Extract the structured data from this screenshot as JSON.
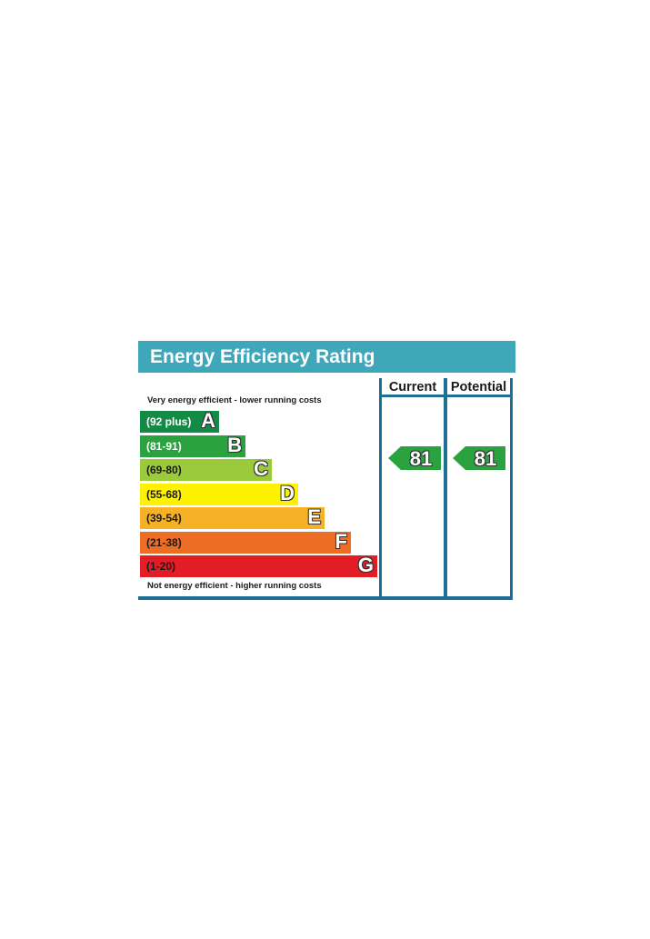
{
  "chart_data": {
    "type": "bar",
    "title": "Energy Efficiency Rating",
    "columns": [
      "Current",
      "Potential"
    ],
    "top_note": "Very energy efficient - lower running costs",
    "bottom_note": "Not energy efficient - higher running costs",
    "bands": [
      {
        "letter": "A",
        "range": "(92 plus)",
        "color": "#138a46",
        "text_color": "#ffffff"
      },
      {
        "letter": "B",
        "range": "(81-91)",
        "color": "#2aa240",
        "text_color": "#ffffff"
      },
      {
        "letter": "C",
        "range": "(69-80)",
        "color": "#9cca3d",
        "text_color": "#1a1a1a"
      },
      {
        "letter": "D",
        "range": "(55-68)",
        "color": "#fff200",
        "text_color": "#1a1a1a"
      },
      {
        "letter": "E",
        "range": "(39-54)",
        "color": "#f5b227",
        "text_color": "#1a1a1a"
      },
      {
        "letter": "F",
        "range": "(21-38)",
        "color": "#ee6d25",
        "text_color": "#1a1a1a"
      },
      {
        "letter": "G",
        "range": "(1-20)",
        "color": "#e31d26",
        "text_color": "#1a1a1a"
      }
    ],
    "current_rating": 81,
    "potential_rating": 81,
    "arrow_color": "#2aa240",
    "frame_color": "#1c6f95",
    "header_color": "#3ea8ba"
  }
}
